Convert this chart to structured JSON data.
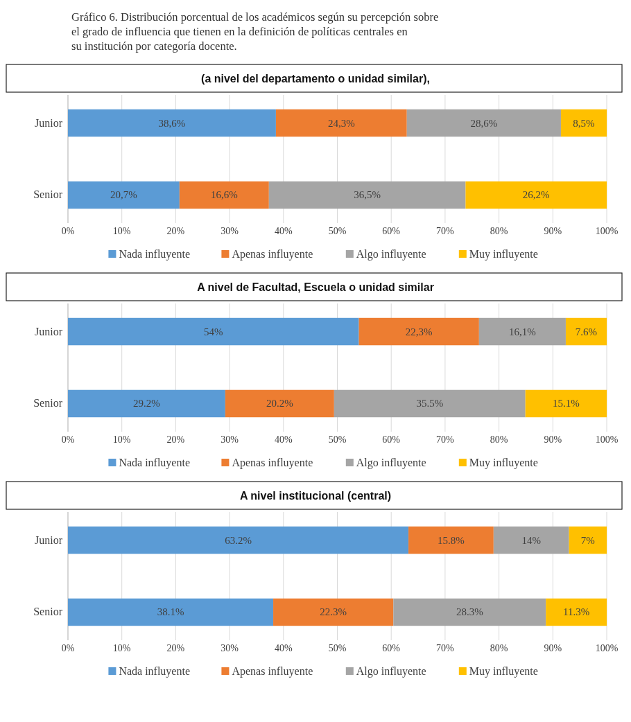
{
  "chart_data": [
    {
      "type": "bar",
      "orientation": "horizontal",
      "stacked": true,
      "title": "Gráfico 6. Distribución porcentual de los académicos según su percepción sobre el grado de influencia que tienen en la definición de políticas centrales en su institución por categoría docente.",
      "subtitle": "(a nivel del departamento o unidad similar),",
      "categories": [
        "Junior",
        "Senior"
      ],
      "xlim": [
        0,
        100
      ],
      "xticks": [
        {
          "value": 0,
          "label": "0%"
        },
        {
          "value": 10,
          "label": "10%"
        },
        {
          "value": 20,
          "label": "20%"
        },
        {
          "value": 30,
          "label": "30%"
        },
        {
          "value": 40,
          "label": "40%"
        },
        {
          "value": 50,
          "label": "50%"
        },
        {
          "value": 60,
          "label": "60%"
        },
        {
          "value": 70,
          "label": "70%"
        },
        {
          "value": 80,
          "label": "80%"
        },
        {
          "value": 90,
          "label": "90%"
        },
        {
          "value": 100,
          "label": "100%"
        }
      ],
      "grid": "x",
      "legend": "bottom",
      "series": [
        {
          "name": "Nada influyente",
          "color": "#5b9bd5",
          "values": [
            38.6,
            20.7
          ],
          "value_labels": [
            "38,6%",
            "20,7%"
          ]
        },
        {
          "name": "Apenas influyente",
          "color": "#ed7d31",
          "values": [
            24.3,
            16.6
          ],
          "value_labels": [
            "24,3%",
            "16,6%"
          ]
        },
        {
          "name": "Algo influyente",
          "color": "#a5a5a5",
          "values": [
            28.6,
            36.5
          ],
          "value_labels": [
            "28,6%",
            "36,5%"
          ]
        },
        {
          "name": "Muy influyente",
          "color": "#ffc000",
          "values": [
            8.5,
            26.2
          ],
          "value_labels": [
            "8,5%",
            "26,2%"
          ]
        }
      ]
    },
    {
      "type": "bar",
      "orientation": "horizontal",
      "stacked": true,
      "title": "A nivel de Facultad, Escuela o unidad similar",
      "categories": [
        "Junior",
        "Senior"
      ],
      "xlim": [
        0,
        100
      ],
      "xticks": [
        {
          "value": 0,
          "label": "0%"
        },
        {
          "value": 10,
          "label": "10%"
        },
        {
          "value": 20,
          "label": "20%"
        },
        {
          "value": 30,
          "label": "30%"
        },
        {
          "value": 40,
          "label": "40%"
        },
        {
          "value": 50,
          "label": "50%"
        },
        {
          "value": 60,
          "label": "60%"
        },
        {
          "value": 70,
          "label": "70%"
        },
        {
          "value": 80,
          "label": "80%"
        },
        {
          "value": 90,
          "label": "90%"
        },
        {
          "value": 100,
          "label": "100%"
        }
      ],
      "grid": "x",
      "legend": "bottom",
      "series": [
        {
          "name": "Nada influyente",
          "color": "#5b9bd5",
          "values": [
            54,
            29.2
          ],
          "value_labels": [
            "54%",
            "29.2%"
          ]
        },
        {
          "name": "Apenas influyente",
          "color": "#ed7d31",
          "values": [
            22.3,
            20.2
          ],
          "value_labels": [
            "22,3%",
            "20.2%"
          ]
        },
        {
          "name": "Algo influyente",
          "color": "#a5a5a5",
          "values": [
            16.1,
            35.5
          ],
          "value_labels": [
            "16,1%",
            "35.5%"
          ]
        },
        {
          "name": "Muy influyente",
          "color": "#ffc000",
          "values": [
            7.6,
            15.1
          ],
          "value_labels": [
            "7.6%",
            "15.1%"
          ]
        }
      ]
    },
    {
      "type": "bar",
      "orientation": "horizontal",
      "stacked": true,
      "title": "A nivel institucional (central)",
      "categories": [
        "Junior",
        "Senior"
      ],
      "xlim": [
        0,
        100
      ],
      "xticks": [
        {
          "value": 0,
          "label": "0%"
        },
        {
          "value": 10,
          "label": "10%"
        },
        {
          "value": 20,
          "label": "20%"
        },
        {
          "value": 30,
          "label": "30%"
        },
        {
          "value": 40,
          "label": "40%"
        },
        {
          "value": 50,
          "label": "50%"
        },
        {
          "value": 60,
          "label": "60%"
        },
        {
          "value": 70,
          "label": "70%"
        },
        {
          "value": 80,
          "label": "80%"
        },
        {
          "value": 90,
          "label": "90%"
        },
        {
          "value": 100,
          "label": "100%"
        }
      ],
      "grid": "x",
      "legend": "bottom",
      "series": [
        {
          "name": "Nada influyente",
          "color": "#5b9bd5",
          "values": [
            63.2,
            38.1
          ],
          "value_labels": [
            "63.2%",
            "38.1%"
          ]
        },
        {
          "name": "Apenas influyente",
          "color": "#ed7d31",
          "values": [
            15.8,
            22.3
          ],
          "value_labels": [
            "15.8%",
            "22.3%"
          ]
        },
        {
          "name": "Algo influyente",
          "color": "#a5a5a5",
          "values": [
            14,
            28.3
          ],
          "value_labels": [
            "14%",
            "28.3%"
          ]
        },
        {
          "name": "Muy influyente",
          "color": "#ffc000",
          "values": [
            7,
            11.3
          ],
          "value_labels": [
            "7%",
            "11.3%"
          ]
        }
      ]
    }
  ]
}
